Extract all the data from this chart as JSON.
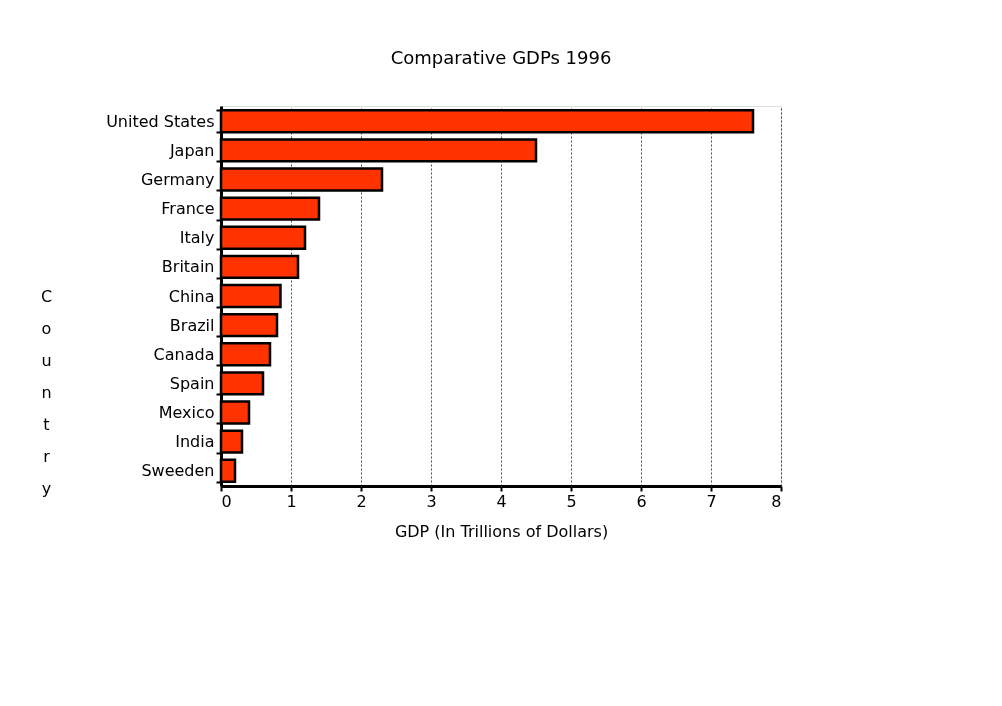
{
  "chart_data": {
    "type": "bar",
    "orientation": "horizontal",
    "title": "Comparative GDPs  1996",
    "xlabel": "GDP (In Trillions of Dollars)",
    "ylabel": "Country",
    "categories": [
      "United States",
      "Japan",
      "Germany",
      "France",
      "Italy",
      "Britain",
      "China",
      "Brazil",
      "Canada",
      "Spain",
      "Mexico",
      "India",
      "Sweeden"
    ],
    "values": [
      7.6,
      4.5,
      2.3,
      1.4,
      1.2,
      1.1,
      0.85,
      0.8,
      0.7,
      0.6,
      0.4,
      0.3,
      0.2
    ],
    "color": "#ff3300",
    "xlim": [
      0,
      8
    ],
    "xticks": [
      0,
      1,
      2,
      3,
      4,
      5,
      6,
      7,
      8
    ],
    "grid": "x"
  }
}
